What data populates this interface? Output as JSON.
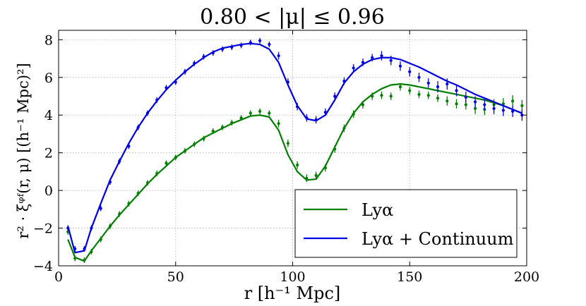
{
  "chart_data": {
    "type": "line",
    "title": "0.80 < |μ| ≤ 0.96",
    "xlabel": "r [h⁻¹ Mpc]",
    "ylabel": "r² · ξᵠᶠ(r, μ) [(h⁻¹ Mpc)²]",
    "xlim": [
      0,
      200
    ],
    "ylim": [
      -4,
      8.5
    ],
    "xticks": [
      0,
      50,
      100,
      150,
      200
    ],
    "yticks": [
      -4,
      -2,
      0,
      2,
      4,
      6,
      8
    ],
    "grid": true,
    "legend_position": "bottom-right",
    "series": [
      {
        "name": "Lyα",
        "color": "#007f00",
        "model": {
          "x": [
            4,
            7,
            11,
            14,
            18,
            22,
            26,
            30,
            34,
            38,
            42,
            46,
            50,
            54,
            58,
            62,
            66,
            70,
            74,
            78,
            82,
            86,
            90,
            94,
            98,
            102,
            106,
            110,
            114,
            118,
            122,
            126,
            130,
            134,
            138,
            142,
            146,
            150,
            154,
            158,
            162,
            166,
            170,
            174,
            178,
            182,
            186,
            190,
            194,
            198
          ],
          "y": [
            -2.6,
            -3.55,
            -3.75,
            -3.2,
            -2.55,
            -1.9,
            -1.3,
            -0.75,
            -0.2,
            0.35,
            0.85,
            1.3,
            1.75,
            2.1,
            2.45,
            2.8,
            3.05,
            3.3,
            3.55,
            3.75,
            3.95,
            4.0,
            3.9,
            3.2,
            1.9,
            1.0,
            0.55,
            0.6,
            1.3,
            2.3,
            3.3,
            4.1,
            4.7,
            5.1,
            5.4,
            5.6,
            5.65,
            5.6,
            5.5,
            5.4,
            5.3,
            5.2,
            5.1,
            5.0,
            4.9,
            4.8,
            4.65,
            4.5,
            4.3,
            4.1
          ]
        },
        "data": {
          "x": [
            4,
            7,
            11,
            14,
            18,
            22,
            26,
            30,
            34,
            38,
            42,
            46,
            50,
            54,
            58,
            62,
            66,
            70,
            74,
            78,
            82,
            86,
            90,
            94,
            98,
            102,
            106,
            110,
            114,
            118,
            122,
            126,
            130,
            134,
            138,
            142,
            146,
            150,
            154,
            158,
            162,
            166,
            170,
            174,
            178,
            182,
            186,
            190,
            194,
            198
          ],
          "y": [
            -2.2,
            -3.6,
            -3.7,
            -3.25,
            -2.6,
            -1.9,
            -1.25,
            -0.7,
            -0.15,
            0.4,
            0.9,
            1.45,
            1.75,
            2.1,
            2.45,
            2.75,
            3.15,
            3.35,
            3.6,
            3.85,
            4.1,
            4.2,
            4.1,
            3.55,
            2.5,
            1.35,
            0.65,
            0.8,
            1.2,
            2.2,
            3.3,
            4.05,
            4.55,
            5.0,
            5.05,
            5.0,
            5.5,
            5.3,
            5.1,
            5.05,
            4.9,
            4.75,
            4.6,
            4.55,
            4.35,
            4.3,
            4.55,
            4.6,
            4.75,
            4.5
          ],
          "err": [
            0.15,
            0.15,
            0.15,
            0.15,
            0.15,
            0.15,
            0.15,
            0.15,
            0.15,
            0.15,
            0.15,
            0.15,
            0.15,
            0.15,
            0.15,
            0.15,
            0.15,
            0.15,
            0.15,
            0.15,
            0.15,
            0.15,
            0.15,
            0.2,
            0.2,
            0.2,
            0.2,
            0.2,
            0.2,
            0.2,
            0.2,
            0.2,
            0.2,
            0.2,
            0.2,
            0.2,
            0.2,
            0.2,
            0.2,
            0.2,
            0.2,
            0.25,
            0.25,
            0.25,
            0.3,
            0.3,
            0.3,
            0.3,
            0.3,
            0.3
          ]
        }
      },
      {
        "name": "Lyα + Continuum",
        "color": "#0000e6",
        "model": {
          "x": [
            4,
            7,
            11,
            14,
            18,
            22,
            26,
            30,
            34,
            38,
            42,
            46,
            50,
            54,
            58,
            62,
            66,
            70,
            74,
            78,
            82,
            86,
            90,
            94,
            98,
            102,
            106,
            110,
            114,
            118,
            122,
            126,
            130,
            134,
            138,
            142,
            146,
            150,
            154,
            158,
            162,
            166,
            170,
            174,
            178,
            182,
            186,
            190,
            194,
            198
          ],
          "y": [
            -1.9,
            -3.3,
            -3.2,
            -2.0,
            -0.7,
            0.55,
            1.55,
            2.5,
            3.35,
            4.1,
            4.75,
            5.35,
            5.85,
            6.3,
            6.7,
            7.05,
            7.35,
            7.55,
            7.65,
            7.75,
            7.8,
            7.75,
            7.5,
            6.8,
            5.6,
            4.5,
            3.8,
            3.7,
            4.0,
            4.8,
            5.7,
            6.3,
            6.7,
            6.95,
            7.05,
            7.05,
            6.95,
            6.75,
            6.55,
            6.3,
            6.05,
            5.8,
            5.6,
            5.35,
            5.1,
            4.9,
            4.7,
            4.5,
            4.3,
            4.1
          ]
        },
        "data": {
          "x": [
            4,
            7,
            11,
            14,
            18,
            22,
            26,
            30,
            34,
            38,
            42,
            46,
            50,
            54,
            58,
            62,
            66,
            70,
            74,
            78,
            82,
            86,
            90,
            94,
            98,
            102,
            106,
            110,
            114,
            118,
            122,
            126,
            130,
            134,
            138,
            142,
            146,
            150,
            154,
            158,
            162,
            166,
            170,
            174,
            178,
            182,
            186,
            190,
            194,
            198
          ],
          "y": [
            -2.0,
            -3.1,
            -3.1,
            -2.0,
            -0.95,
            0.45,
            1.55,
            2.35,
            3.35,
            4.1,
            4.8,
            5.45,
            5.75,
            6.3,
            6.75,
            7.1,
            7.3,
            7.5,
            7.6,
            7.7,
            7.85,
            7.95,
            7.75,
            7.15,
            5.75,
            4.45,
            3.85,
            3.75,
            4.15,
            5.0,
            5.8,
            6.5,
            6.8,
            7.05,
            7.15,
            6.9,
            6.6,
            6.3,
            6.0,
            5.7,
            5.5,
            5.65,
            5.3,
            4.95,
            4.7,
            4.55,
            4.35,
            4.25,
            4.2,
            4.0
          ],
          "err": [
            0.15,
            0.15,
            0.15,
            0.15,
            0.15,
            0.15,
            0.15,
            0.15,
            0.15,
            0.15,
            0.15,
            0.15,
            0.15,
            0.15,
            0.15,
            0.15,
            0.15,
            0.15,
            0.15,
            0.15,
            0.15,
            0.15,
            0.15,
            0.2,
            0.2,
            0.2,
            0.2,
            0.2,
            0.2,
            0.2,
            0.2,
            0.2,
            0.2,
            0.2,
            0.25,
            0.25,
            0.25,
            0.25,
            0.25,
            0.25,
            0.3,
            0.3,
            0.3,
            0.3,
            0.3,
            0.3,
            0.3,
            0.3,
            0.3,
            0.3
          ]
        }
      }
    ]
  }
}
